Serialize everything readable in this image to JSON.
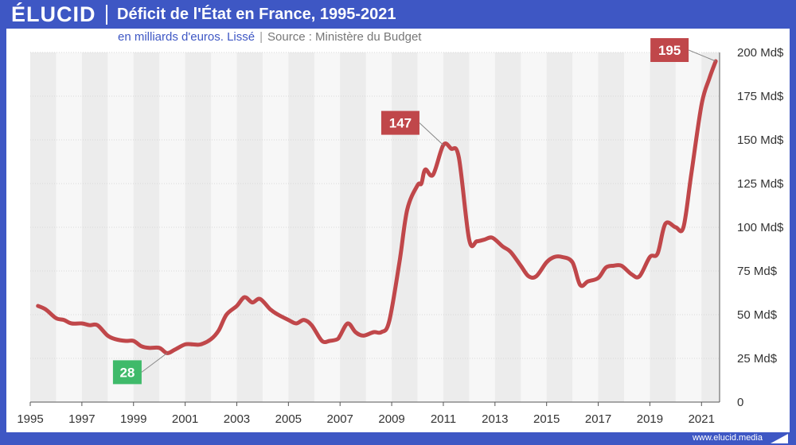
{
  "header": {
    "logo": "ÉLUCID",
    "title": "Déficit de l'État en France, 1995-2021"
  },
  "subheader": {
    "unit_note": "en milliards d'euros. Lissé",
    "separator": "|",
    "source": "Source : Ministère du Budget"
  },
  "footer": {
    "url": "www.elucid.media"
  },
  "colors": {
    "brand": "#3e57c4",
    "line": "#c0474a",
    "low_callout": "#3fba6a",
    "high_callout": "#c0474a"
  },
  "chart_data": {
    "type": "line",
    "title": "Déficit de l'État en France, 1995-2021",
    "subtitle": "en milliards d'euros. Lissé",
    "source": "Ministère du Budget",
    "xlabel": "",
    "ylabel": "",
    "xlim": [
      1995,
      2021.7
    ],
    "ylim": [
      0,
      200
    ],
    "x_ticks": [
      "1995",
      "1997",
      "1999",
      "2001",
      "2003",
      "2005",
      "2007",
      "2009",
      "2011",
      "2013",
      "2015",
      "2017",
      "2019",
      "2021"
    ],
    "x_tick_values": [
      1995,
      1997,
      1999,
      2001,
      2003,
      2005,
      2007,
      2009,
      2011,
      2013,
      2015,
      2017,
      2019,
      2021
    ],
    "y_ticks": [
      "0",
      "25 Md$",
      "50 Md$",
      "75 Md$",
      "100 Md$",
      "125 Md$",
      "150 Md$",
      "175 Md$",
      "200 Md$"
    ],
    "y_tick_values": [
      0,
      25,
      50,
      75,
      100,
      125,
      150,
      175,
      200
    ],
    "grid": true,
    "series": [
      {
        "name": "Déficit de l'État",
        "x": [
          1995.3,
          1995.6,
          1996.0,
          1996.3,
          1996.6,
          1997.0,
          1997.3,
          1997.6,
          1998.0,
          1998.3,
          1998.7,
          1999.0,
          1999.3,
          1999.6,
          2000.0,
          2000.3,
          2000.6,
          2001.0,
          2001.3,
          2001.6,
          2002.0,
          2002.3,
          2002.6,
          2003.0,
          2003.3,
          2003.6,
          2003.9,
          2004.3,
          2004.6,
          2005.0,
          2005.3,
          2005.6,
          2005.9,
          2006.3,
          2006.6,
          2006.9,
          2007.0,
          2007.3,
          2007.6,
          2007.9,
          2008.3,
          2008.6,
          2008.9,
          2009.3,
          2009.6,
          2010.0,
          2010.15,
          2010.3,
          2010.6,
          2011.0,
          2011.3,
          2011.6,
          2012.0,
          2012.3,
          2012.6,
          2012.9,
          2013.3,
          2013.6,
          2014.0,
          2014.3,
          2014.6,
          2015.0,
          2015.3,
          2015.6,
          2016.0,
          2016.3,
          2016.6,
          2017.0,
          2017.3,
          2017.6,
          2017.9,
          2018.3,
          2018.6,
          2019.0,
          2019.3,
          2019.6,
          2020.0,
          2020.3,
          2020.6,
          2021.0,
          2021.3,
          2021.55
        ],
        "values": [
          55,
          53,
          48,
          47,
          45,
          45,
          44,
          44,
          38,
          36,
          35,
          35,
          32,
          31,
          31,
          28,
          30,
          33,
          33,
          33,
          36,
          41,
          50,
          55,
          60,
          57,
          59,
          53,
          50,
          47,
          45,
          47,
          44,
          35,
          35,
          36,
          38,
          45,
          40,
          38,
          40,
          40,
          46,
          80,
          110,
          124,
          125,
          133,
          130,
          147,
          145,
          140,
          93,
          92,
          93,
          94,
          89,
          86,
          78,
          72,
          72,
          80,
          83,
          83,
          80,
          67,
          69,
          71,
          77,
          78,
          78,
          73,
          72,
          83,
          85,
          102,
          100,
          100,
          130,
          170,
          185,
          195
        ]
      }
    ],
    "annotations": [
      {
        "label": "28",
        "x": 2000.3,
        "y": 28,
        "kind": "min"
      },
      {
        "label": "147",
        "x": 2011.0,
        "y": 147,
        "kind": "peak"
      },
      {
        "label": "195",
        "x": 2021.55,
        "y": 195,
        "kind": "max"
      }
    ]
  }
}
